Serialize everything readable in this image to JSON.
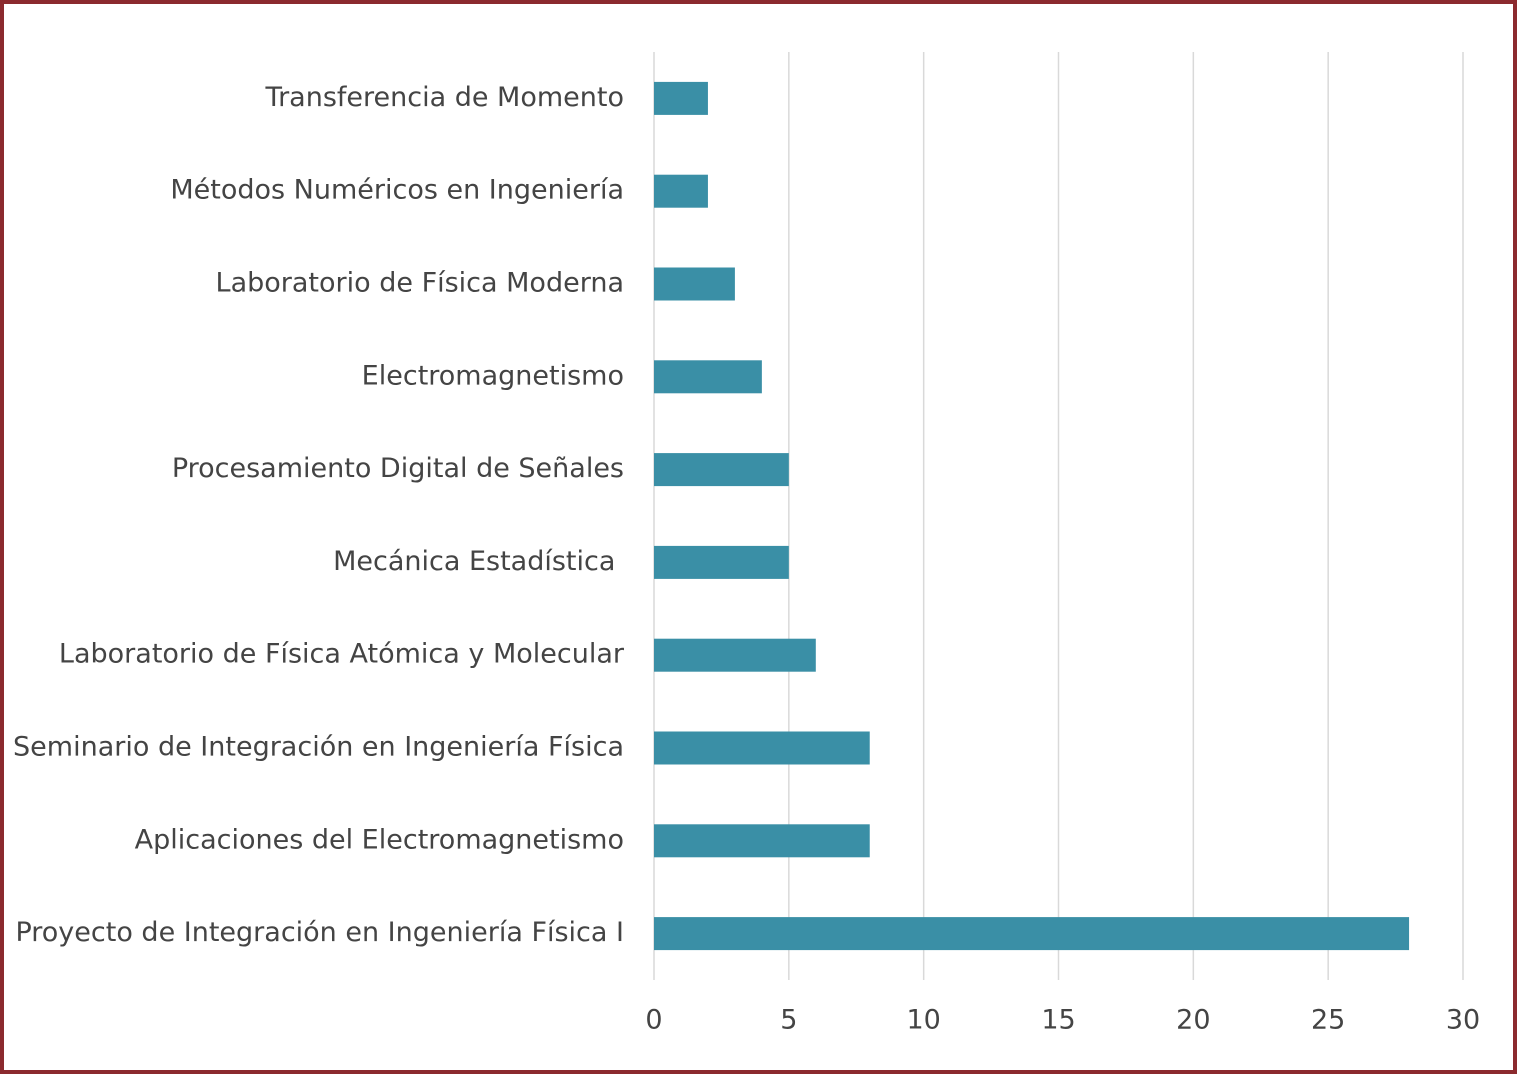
{
  "chart_data": {
    "type": "bar",
    "orientation": "horizontal",
    "categories": [
      "Transferencia de Momento",
      "Métodos Numéricos en Ingeniería",
      "Laboratorio de Física Moderna",
      "Electromagnetismo",
      "Procesamiento Digital de Señales",
      "Mecánica Estadística ",
      "Laboratorio de Física Atómica y Molecular",
      "Seminario de Integración en Ingeniería Física",
      "Aplicaciones del Electromagnetismo",
      "Proyecto de Integración en Ingeniería Física I"
    ],
    "values": [
      2,
      2,
      3,
      4,
      5,
      5,
      6,
      8,
      8,
      28
    ],
    "color": "#3a8fa6",
    "xlim": [
      0,
      30
    ],
    "xticks": [
      0,
      5,
      10,
      15,
      20,
      25,
      30
    ],
    "grid": true
  }
}
